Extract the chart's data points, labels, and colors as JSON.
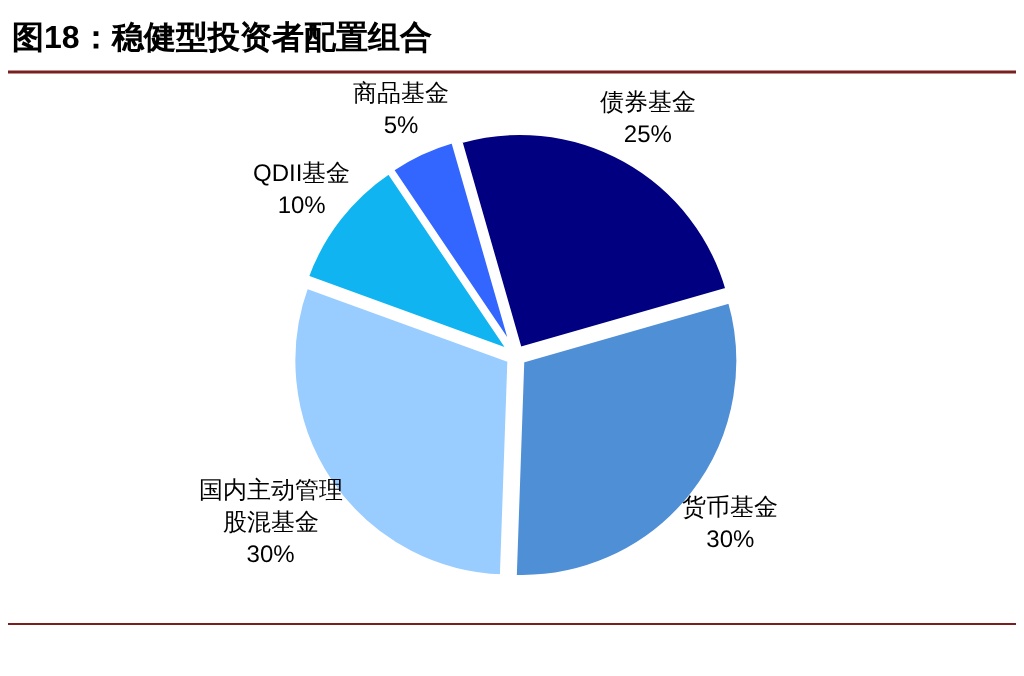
{
  "chart_data": {
    "type": "pie",
    "title": "图18：稳健型投资者配置组合",
    "categories": [
      "债券基金",
      "货币基金",
      "国内主动管理股混基金",
      "QDII基金",
      "商品基金"
    ],
    "values": [
      25,
      30,
      30,
      10,
      5
    ],
    "value_labels": [
      "25%",
      "30%",
      "30%",
      "10%",
      "5%"
    ],
    "colors": [
      "#000080",
      "#4f8fd6",
      "#99ccff",
      "#10b4f0",
      "#3366ff"
    ]
  }
}
